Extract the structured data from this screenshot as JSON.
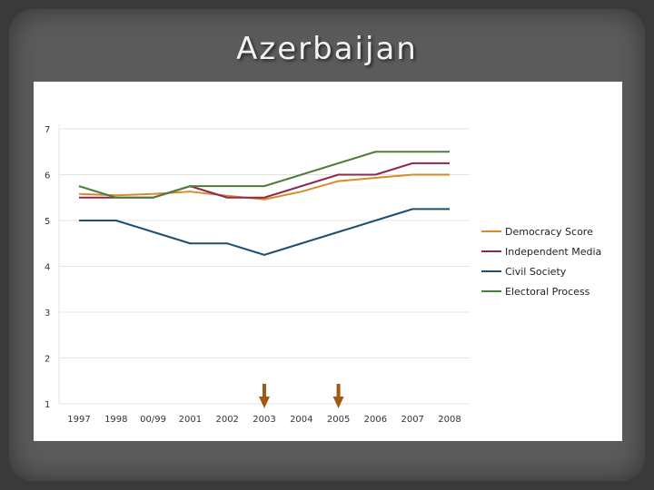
{
  "slide": {
    "title": "Azerbaijan"
  },
  "chart_data": {
    "type": "line",
    "categories": [
      "1997",
      "1998",
      "00/99",
      "2001",
      "2002",
      "2003",
      "2004",
      "2005",
      "2006",
      "2007",
      "2008"
    ],
    "ylim": [
      1,
      7
    ],
    "yticks": [
      "1",
      "2",
      "3",
      "4",
      "5",
      "6",
      "7"
    ],
    "grid": "horizontal",
    "legend_position": "right",
    "series": [
      {
        "name": "Democracy Score",
        "color": "#d9892a",
        "values": [
          5.58,
          5.55,
          5.58,
          5.63,
          5.54,
          5.46,
          5.63,
          5.86,
          5.93,
          6.0,
          6.0
        ]
      },
      {
        "name": "Independent Media",
        "color": "#8b2a4a",
        "values": [
          5.5,
          5.5,
          5.5,
          5.75,
          5.5,
          5.5,
          5.75,
          6.0,
          6.0,
          6.25,
          6.25
        ]
      },
      {
        "name": "Civil Society",
        "color": "#1f4e6e",
        "values": [
          5.0,
          5.0,
          4.75,
          4.5,
          4.5,
          4.25,
          4.5,
          4.75,
          5.0,
          5.25,
          5.25
        ]
      },
      {
        "name": "Electoral Process",
        "color": "#4a7f3a",
        "values": [
          5.75,
          5.5,
          5.5,
          5.75,
          5.75,
          5.75,
          6.0,
          6.25,
          6.5,
          6.5,
          6.5
        ]
      }
    ],
    "annotations": [
      {
        "type": "arrow",
        "at": "2003",
        "color": "#a05a14"
      },
      {
        "type": "arrow",
        "at": "2005",
        "color": "#a05a14"
      }
    ]
  }
}
